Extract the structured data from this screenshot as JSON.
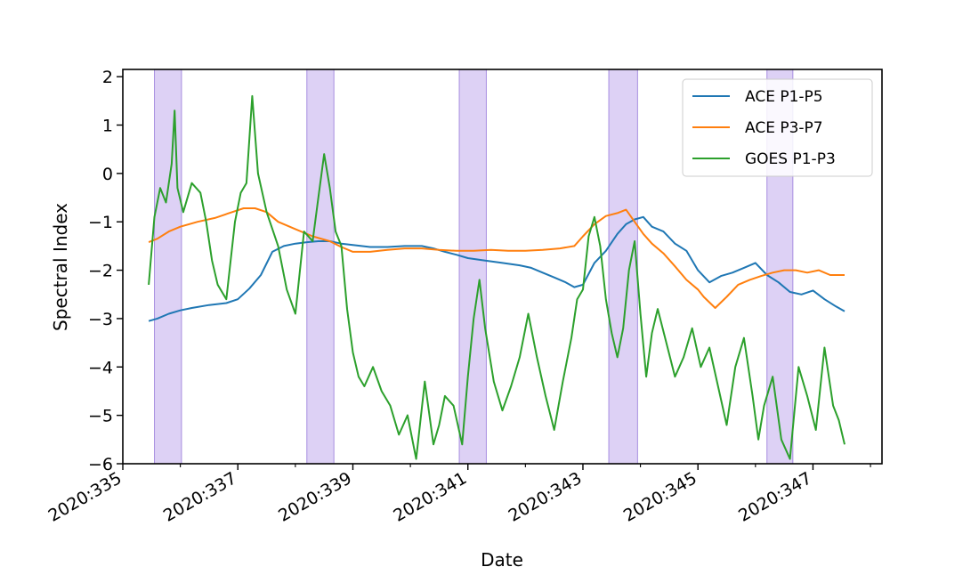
{
  "chart_data": {
    "type": "line",
    "title": "",
    "xlabel": "Date",
    "ylabel": "Spectral Index",
    "xlim": [
      335.0,
      348.2
    ],
    "ylim": [
      -6,
      2.15
    ],
    "x_ticks": [
      335,
      337,
      339,
      341,
      343,
      345,
      347
    ],
    "x_tick_labels": [
      "2020:335",
      "2020:337",
      "2020:339",
      "2020:341",
      "2020:343",
      "2020:345",
      "2020:347"
    ],
    "y_ticks": [
      2,
      1,
      0,
      -1,
      -2,
      -3,
      -4,
      -5,
      -6
    ],
    "y_tick_labels": [
      "2",
      "1",
      "0",
      "−1",
      "−2",
      "−3",
      "−4",
      "−5",
      "−6"
    ],
    "grid": false,
    "legend_position": "upper right",
    "shaded_color": "#c6b3ee",
    "shaded_intervals": [
      [
        335.55,
        336.02
      ],
      [
        338.2,
        338.67
      ],
      [
        340.85,
        341.32
      ],
      [
        343.45,
        343.95
      ],
      [
        346.2,
        346.65
      ]
    ],
    "series": [
      {
        "name": "ACE P1-P5",
        "color": "#1f77b4",
        "x": [
          335.45,
          335.6,
          335.8,
          336.0,
          336.2,
          336.5,
          336.8,
          337.0,
          337.2,
          337.4,
          337.6,
          337.8,
          338.0,
          338.2,
          338.4,
          338.6,
          338.8,
          339.0,
          339.3,
          339.6,
          339.9,
          340.2,
          340.4,
          340.6,
          340.8,
          341.0,
          341.3,
          341.6,
          341.9,
          342.1,
          342.3,
          342.5,
          342.7,
          342.85,
          343.0,
          343.2,
          343.4,
          343.6,
          343.75,
          343.9,
          344.05,
          344.2,
          344.4,
          344.6,
          344.8,
          345.0,
          345.2,
          345.4,
          345.6,
          345.8,
          346.0,
          346.2,
          346.4,
          346.6,
          346.8,
          347.0,
          347.2,
          347.4,
          347.55
        ],
        "values": [
          -3.05,
          -3.0,
          -2.9,
          -2.83,
          -2.78,
          -2.72,
          -2.68,
          -2.6,
          -2.38,
          -2.1,
          -1.62,
          -1.5,
          -1.45,
          -1.42,
          -1.4,
          -1.4,
          -1.45,
          -1.48,
          -1.52,
          -1.52,
          -1.5,
          -1.5,
          -1.55,
          -1.62,
          -1.68,
          -1.75,
          -1.8,
          -1.85,
          -1.9,
          -1.95,
          -2.05,
          -2.15,
          -2.25,
          -2.35,
          -2.3,
          -1.85,
          -1.6,
          -1.25,
          -1.05,
          -0.95,
          -0.9,
          -1.1,
          -1.2,
          -1.45,
          -1.6,
          -2.0,
          -2.25,
          -2.12,
          -2.05,
          -1.95,
          -1.85,
          -2.1,
          -2.25,
          -2.45,
          -2.5,
          -2.42,
          -2.6,
          -2.75,
          -2.85
        ]
      },
      {
        "name": "ACE P3-P7",
        "color": "#ff7f0e",
        "x": [
          335.45,
          335.6,
          335.8,
          336.0,
          336.3,
          336.6,
          336.9,
          337.1,
          337.3,
          337.5,
          337.7,
          338.0,
          338.3,
          338.6,
          338.8,
          339.0,
          339.3,
          339.6,
          339.9,
          340.2,
          340.5,
          340.8,
          341.1,
          341.4,
          341.7,
          342.0,
          342.3,
          342.6,
          342.85,
          343.0,
          343.2,
          343.4,
          343.6,
          343.75,
          343.9,
          344.05,
          344.2,
          344.4,
          344.6,
          344.8,
          345.0,
          345.1,
          345.3,
          345.5,
          345.7,
          345.9,
          346.1,
          346.3,
          346.5,
          346.7,
          346.9,
          347.1,
          347.3,
          347.55
        ],
        "values": [
          -1.42,
          -1.35,
          -1.2,
          -1.1,
          -1.0,
          -0.92,
          -0.8,
          -0.72,
          -0.72,
          -0.8,
          -1.0,
          -1.15,
          -1.3,
          -1.4,
          -1.52,
          -1.62,
          -1.62,
          -1.58,
          -1.55,
          -1.55,
          -1.58,
          -1.6,
          -1.6,
          -1.58,
          -1.6,
          -1.6,
          -1.58,
          -1.55,
          -1.5,
          -1.3,
          -1.05,
          -0.88,
          -0.82,
          -0.75,
          -1.0,
          -1.25,
          -1.45,
          -1.65,
          -1.92,
          -2.2,
          -2.4,
          -2.55,
          -2.78,
          -2.55,
          -2.3,
          -2.2,
          -2.12,
          -2.05,
          -2.0,
          -2.0,
          -2.05,
          -2.0,
          -2.1,
          -2.1
        ]
      },
      {
        "name": "GOES P1-P3",
        "color": "#2ca02c",
        "x": [
          335.45,
          335.55,
          335.65,
          335.75,
          335.85,
          335.9,
          335.95,
          336.05,
          336.2,
          336.35,
          336.45,
          336.55,
          336.65,
          336.8,
          336.95,
          337.05,
          337.15,
          337.25,
          337.35,
          337.5,
          337.7,
          337.85,
          338.0,
          338.15,
          338.3,
          338.4,
          338.5,
          338.6,
          338.7,
          338.8,
          338.9,
          339.0,
          339.1,
          339.2,
          339.35,
          339.5,
          339.65,
          339.8,
          339.95,
          340.1,
          340.25,
          340.4,
          340.5,
          340.6,
          340.75,
          340.9,
          341.0,
          341.1,
          341.2,
          341.3,
          341.45,
          341.6,
          341.75,
          341.9,
          342.05,
          342.2,
          342.35,
          342.5,
          342.65,
          342.8,
          342.9,
          343.0,
          343.1,
          343.2,
          343.3,
          343.4,
          343.5,
          343.6,
          343.7,
          343.8,
          343.9,
          344.0,
          344.1,
          344.2,
          344.3,
          344.45,
          344.6,
          344.75,
          344.9,
          345.05,
          345.2,
          345.35,
          345.5,
          345.65,
          345.8,
          345.95,
          346.05,
          346.15,
          346.3,
          346.45,
          346.6,
          346.75,
          346.9,
          347.05,
          347.2,
          347.35,
          347.45,
          347.55
        ],
        "values": [
          -2.3,
          -0.9,
          -0.3,
          -0.6,
          0.2,
          1.3,
          -0.3,
          -0.8,
          -0.2,
          -0.4,
          -1.0,
          -1.8,
          -2.3,
          -2.6,
          -1.0,
          -0.4,
          -0.2,
          1.6,
          0.0,
          -0.8,
          -1.5,
          -2.4,
          -2.9,
          -1.2,
          -1.4,
          -0.5,
          0.4,
          -0.3,
          -1.2,
          -1.5,
          -2.8,
          -3.7,
          -4.2,
          -4.4,
          -4.0,
          -4.5,
          -4.8,
          -5.4,
          -5.0,
          -5.9,
          -4.3,
          -5.6,
          -5.2,
          -4.6,
          -4.8,
          -5.6,
          -4.2,
          -3.0,
          -2.2,
          -3.2,
          -4.3,
          -4.9,
          -4.4,
          -3.8,
          -2.9,
          -3.8,
          -4.6,
          -5.3,
          -4.3,
          -3.4,
          -2.6,
          -2.4,
          -1.3,
          -0.9,
          -1.5,
          -2.6,
          -3.3,
          -3.8,
          -3.2,
          -2.0,
          -1.4,
          -2.9,
          -4.2,
          -3.3,
          -2.8,
          -3.5,
          -4.2,
          -3.8,
          -3.2,
          -4.0,
          -3.6,
          -4.4,
          -5.2,
          -4.0,
          -3.4,
          -4.6,
          -5.5,
          -4.8,
          -4.2,
          -5.5,
          -5.9,
          -4.0,
          -4.6,
          -5.3,
          -3.6,
          -4.8,
          -5.1,
          -5.6
        ]
      }
    ]
  }
}
